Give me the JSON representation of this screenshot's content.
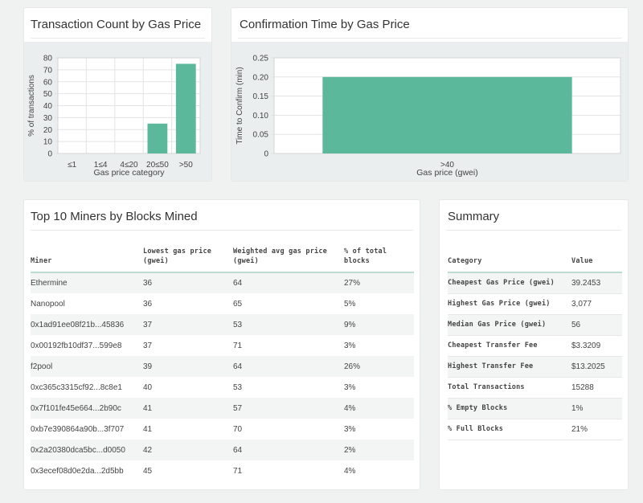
{
  "charts": {
    "chart_data": [
      {
        "type": "bar",
        "title": "Transaction Count by Gas Price",
        "xlabel": "Gas price category",
        "ylabel": "% of transactions",
        "categories": [
          "≤1",
          "1≤4",
          "4≤20",
          "20≤50",
          ">50"
        ],
        "values": [
          0,
          0,
          0,
          25,
          75
        ],
        "ylim": [
          0,
          80
        ],
        "yticks": [
          0,
          10,
          20,
          30,
          40,
          50,
          60,
          70,
          80
        ],
        "color": "#5bb89a",
        "grid": true
      },
      {
        "type": "bar",
        "title": "Confirmation Time by Gas Price",
        "xlabel": "Gas price (gwei)",
        "ylabel": "Time to Confirm (min)",
        "categories": [
          ">40"
        ],
        "values": [
          0.2
        ],
        "ylim": [
          0,
          0.25
        ],
        "yticks": [
          "0",
          "0.05",
          "0.10",
          "0.15",
          "0.20",
          "0.25"
        ],
        "color": "#5bb89a",
        "grid": true
      }
    ]
  },
  "miners": {
    "title": "Top 10 Miners by Blocks Mined",
    "headers": [
      [
        "Miner"
      ],
      [
        "Lowest gas price",
        "(gwei)"
      ],
      [
        "Weighted avg gas price",
        "(gwei)"
      ],
      [
        "% of total",
        "blocks"
      ]
    ],
    "rows": [
      [
        "Ethermine",
        "36",
        "64",
        "27%"
      ],
      [
        "Nanopool",
        "36",
        "65",
        "5%"
      ],
      [
        "0x1ad91ee08f21b...45836",
        "37",
        "53",
        "9%"
      ],
      [
        "0x00192fb10df37...599e8",
        "37",
        "71",
        "3%"
      ],
      [
        "f2pool",
        "39",
        "64",
        "26%"
      ],
      [
        "0xc365c3315cf92...8c8e1",
        "40",
        "53",
        "3%"
      ],
      [
        "0x7f101fe45e664...2b90c",
        "41",
        "57",
        "4%"
      ],
      [
        "0xb7e390864a90b...3f707",
        "41",
        "70",
        "3%"
      ],
      [
        "0x2a20380dca5bc...d0050",
        "42",
        "64",
        "2%"
      ],
      [
        "0x3ecef08d0e2da...2d5bb",
        "45",
        "71",
        "4%"
      ]
    ]
  },
  "summary": {
    "title": "Summary",
    "headers": [
      "Category",
      "Value"
    ],
    "rows": [
      [
        "Cheapest Gas Price (gwei)",
        "39.2453"
      ],
      [
        "Highest Gas Price (gwei)",
        "3,077"
      ],
      [
        "Median Gas Price (gwei)",
        "56"
      ],
      [
        "Cheapest Transfer Fee",
        "$3.3209"
      ],
      [
        "Highest Transfer Fee",
        "$13.2025"
      ],
      [
        "Total Transactions",
        "15288"
      ],
      [
        "% Empty Blocks",
        "1%"
      ],
      [
        "% Full Blocks",
        "21%"
      ]
    ]
  }
}
